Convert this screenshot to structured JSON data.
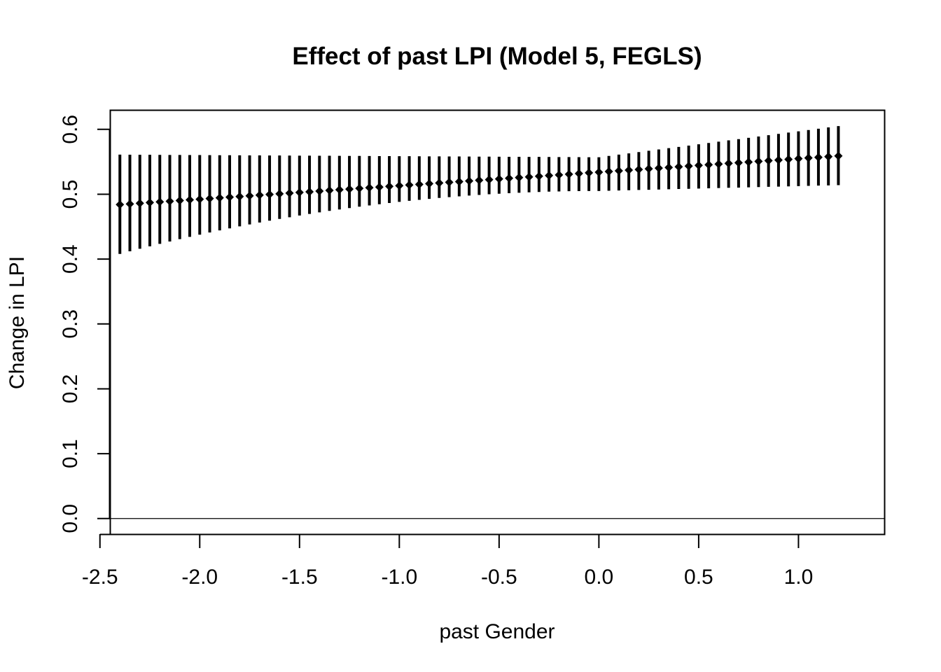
{
  "chart_data": {
    "type": "scatter",
    "title": "Effect of past LPI (Model 5, FEGLS)",
    "xlabel": "past Gender",
    "ylabel": "Change in LPI",
    "xlim": [
      -2.45,
      1.43
    ],
    "ylim": [
      -0.024,
      0.63
    ],
    "x_ticks": [
      -2.5,
      -2.0,
      -1.5,
      -1.0,
      -0.5,
      0.0,
      0.5,
      1.0
    ],
    "x_tick_labels": [
      "-2.5",
      "-2.0",
      "-1.5",
      "-1.0",
      "-0.5",
      "0.0",
      "0.5",
      "1.0"
    ],
    "y_ticks": [
      0.0,
      0.1,
      0.2,
      0.3,
      0.4,
      0.5,
      0.6
    ],
    "y_tick_labels": [
      "0.0",
      "0.1",
      "0.2",
      "0.3",
      "0.4",
      "0.5",
      "0.6"
    ],
    "reference_line_y": 0,
    "grid": false,
    "legend": "none",
    "series": [
      {
        "x_start": -2.4,
        "x_end": 1.2,
        "step": 0.05,
        "point_start": 0.484,
        "point_end": 0.559,
        "lower_start": 0.408,
        "lower_mid": 0.505,
        "lower_end": 0.514,
        "upper_start": 0.561,
        "upper_min": 0.557,
        "upper_end": 0.605,
        "mid_x": -0.0
      }
    ],
    "color": "#000000"
  }
}
